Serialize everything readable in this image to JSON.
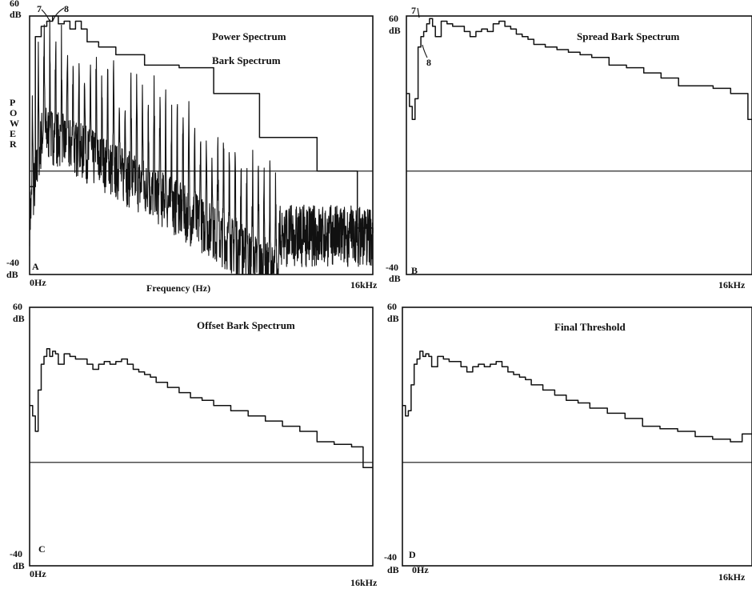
{
  "chart_data": [
    {
      "panel": "A",
      "type": "line",
      "title": "Power Spectrum",
      "series": [
        {
          "name": "Power Spectrum",
          "style": "noisy"
        },
        {
          "name": "Bark Spectrum",
          "style": "step",
          "x": [
            0,
            0.27,
            0.54,
            0.8,
            1.07,
            1.34,
            1.61,
            1.88,
            2.14,
            2.41,
            2.68,
            3.22,
            4.02,
            5.36,
            6.97,
            8.58,
            10.72,
            13.4,
            15.28,
            16
          ],
          "values": [
            -6,
            52,
            56,
            58,
            60,
            57,
            58,
            55,
            58,
            55,
            50,
            48,
            45,
            41,
            40,
            30,
            13,
            0,
            -22,
            -24
          ]
        }
      ],
      "ylabel": "POWER",
      "xlabel": "Frequency (Hz)",
      "ylim": [
        -40,
        60
      ],
      "xlim": [
        0,
        16
      ],
      "y_top_label": "60",
      "y_bottom_label": "-40",
      "y_unit": "dB",
      "x_start_label": "0Hz",
      "x_end_label": "16kHz",
      "annotations": [
        "7",
        "8"
      ],
      "reference_level": 0
    },
    {
      "panel": "B",
      "type": "line",
      "title": "Spread Bark Spectrum",
      "series": [
        {
          "name": "Spread Bark Spectrum",
          "style": "step",
          "x": [
            0,
            0.14,
            0.27,
            0.4,
            0.54,
            0.67,
            0.8,
            0.94,
            1.07,
            1.21,
            1.34,
            1.61,
            1.88,
            2.14,
            2.41,
            2.68,
            2.95,
            3.22,
            3.48,
            3.75,
            4.02,
            4.29,
            4.56,
            4.83,
            5.09,
            5.36,
            5.63,
            5.9,
            6.43,
            6.97,
            7.5,
            8.04,
            8.58,
            9.38,
            10.19,
            10.99,
            11.79,
            12.6,
            13.4,
            14.2,
            15.01,
            15.81,
            16
          ],
          "values": [
            30,
            25,
            20,
            28,
            48,
            52,
            54,
            57,
            59,
            56,
            52,
            58,
            57,
            56,
            56,
            54,
            52,
            54,
            55,
            54,
            57,
            58,
            56,
            55,
            53,
            52,
            51,
            49,
            48,
            47,
            46,
            45,
            44,
            41,
            40,
            38,
            36,
            33,
            33,
            32,
            30,
            20,
            20
          ]
        }
      ],
      "ylim": [
        -40,
        60
      ],
      "xlim": [
        0,
        16
      ],
      "y_top_label": "60",
      "y_bottom_label": "-40",
      "y_unit": "dB",
      "x_end_label": "16kHz",
      "annotations": [
        "7",
        "8"
      ],
      "reference_level": 0
    },
    {
      "panel": "C",
      "type": "line",
      "title": "Offset Bark Spectrum",
      "series": [
        {
          "name": "Offset Bark Spectrum",
          "style": "step",
          "x": [
            0,
            0.14,
            0.27,
            0.4,
            0.54,
            0.67,
            0.8,
            0.94,
            1.07,
            1.21,
            1.34,
            1.61,
            1.88,
            2.14,
            2.41,
            2.68,
            2.95,
            3.22,
            3.48,
            3.75,
            4.02,
            4.29,
            4.56,
            4.83,
            5.09,
            5.36,
            5.63,
            5.9,
            6.43,
            6.97,
            7.5,
            8.04,
            8.58,
            9.38,
            10.19,
            10.99,
            11.79,
            12.6,
            13.4,
            14.2,
            15.01,
            15.55,
            16
          ],
          "values": [
            22,
            18,
            12,
            28,
            38,
            41,
            44,
            41,
            43,
            42,
            38,
            42,
            41,
            40,
            40,
            38,
            36,
            38,
            39,
            38,
            39,
            40,
            38,
            36,
            35,
            34,
            33,
            31,
            29,
            27,
            25,
            24,
            22,
            20,
            18,
            16,
            14,
            12,
            8,
            7,
            6,
            -2,
            -2
          ]
        }
      ],
      "ylim": [
        -40,
        60
      ],
      "xlim": [
        0,
        16
      ],
      "y_top_label": "60",
      "y_bottom_label": "-40",
      "y_unit": "dB",
      "x_start_label": "0Hz",
      "x_end_label": "16kHz",
      "reference_level": 0
    },
    {
      "panel": "D",
      "type": "line",
      "title": "Final Threshold",
      "series": [
        {
          "name": "Final Threshold",
          "style": "step",
          "x": [
            0,
            0.14,
            0.27,
            0.4,
            0.54,
            0.67,
            0.8,
            0.94,
            1.07,
            1.21,
            1.34,
            1.61,
            1.88,
            2.14,
            2.41,
            2.68,
            2.95,
            3.22,
            3.48,
            3.75,
            4.02,
            4.29,
            4.56,
            4.83,
            5.09,
            5.36,
            5.63,
            5.9,
            6.43,
            6.97,
            7.5,
            8.04,
            8.58,
            9.38,
            10.19,
            10.99,
            11.79,
            12.6,
            13.4,
            14.2,
            15.01,
            15.55,
            16
          ],
          "values": [
            22,
            18,
            20,
            30,
            38,
            40,
            43,
            41,
            42,
            41,
            37,
            41,
            40,
            39,
            39,
            37,
            35,
            37,
            38,
            37,
            38,
            39,
            37,
            35,
            34,
            33,
            32,
            30,
            28,
            26,
            24,
            23,
            21,
            19,
            17,
            14,
            13,
            12,
            10,
            9,
            8,
            11,
            11
          ]
        }
      ],
      "ylim": [
        -40,
        60
      ],
      "xlim": [
        0,
        16
      ],
      "y_top_label": "60",
      "y_bottom_label": "-40",
      "y_unit": "dB",
      "x_start_label": "0Hz",
      "x_end_label": "16kHz",
      "reference_level": 0
    }
  ]
}
